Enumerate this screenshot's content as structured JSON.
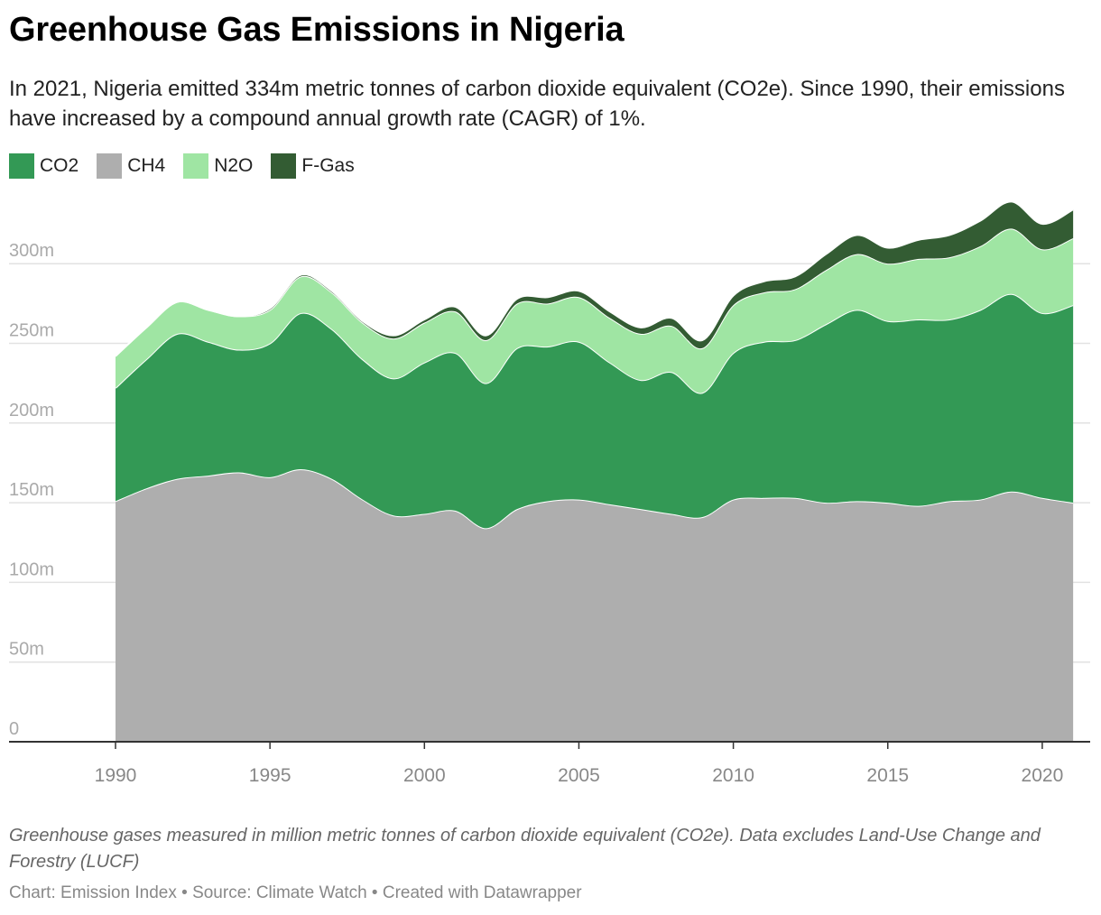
{
  "title": "Greenhouse Gas Emissions in Nigeria",
  "subtitle": "In 2021, Nigeria emitted 334m metric tonnes of carbon dioxide equivalent (CO2e). Since 1990, their emissions have increased by a compound annual growth rate (CAGR) of 1%.",
  "notes": "Greenhouse gases measured in million metric tonnes of carbon dioxide equivalent (CO2e). Data excludes Land-Use Change and Forestry (LUCF)",
  "source": "Chart: Emission Index • Source: Climate Watch • Created with Datawrapper",
  "legend": [
    {
      "label": "CO2",
      "color": "#339955"
    },
    {
      "label": "CH4",
      "color": "#aeaeae"
    },
    {
      "label": "N2O",
      "color": "#9fe5a3"
    },
    {
      "label": "F-Gas",
      "color": "#335c33"
    }
  ],
  "chart_data": {
    "type": "area",
    "stacked": true,
    "x": [
      1990,
      1991,
      1992,
      1993,
      1994,
      1995,
      1996,
      1997,
      1998,
      1999,
      2000,
      2001,
      2002,
      2003,
      2004,
      2005,
      2006,
      2007,
      2008,
      2009,
      2010,
      2011,
      2012,
      2013,
      2014,
      2015,
      2016,
      2017,
      2018,
      2019,
      2020,
      2021
    ],
    "series": [
      {
        "name": "CH4",
        "color": "#aeaeae",
        "values": [
          151,
          159,
          165,
          167,
          169,
          166,
          171,
          165,
          152,
          142,
          143,
          145,
          134,
          146,
          151,
          152,
          149,
          146,
          143,
          141,
          152,
          153,
          153,
          150,
          151,
          150,
          148,
          151,
          152,
          157,
          153,
          150
        ]
      },
      {
        "name": "CO2",
        "color": "#339955",
        "values": [
          71,
          81,
          91,
          84,
          77,
          84,
          98,
          94,
          88,
          86,
          95,
          99,
          91,
          101,
          97,
          99,
          89,
          81,
          89,
          78,
          92,
          98,
          99,
          112,
          120,
          114,
          117,
          114,
          119,
          124,
          116,
          124
        ]
      },
      {
        "name": "N2O",
        "color": "#9fe5a3",
        "values": [
          20,
          20,
          20,
          20,
          21,
          21,
          23,
          23,
          23,
          25,
          25,
          26,
          27,
          28,
          27,
          28,
          28,
          29,
          29,
          28,
          30,
          31,
          32,
          34,
          35,
          36,
          38,
          39,
          40,
          41,
          40,
          42
        ]
      },
      {
        "name": "F-Gas",
        "color": "#335c33",
        "values": [
          0,
          0,
          0,
          0,
          0,
          1,
          1,
          1,
          1,
          2,
          2,
          3,
          3,
          3,
          4,
          4,
          4,
          4,
          5,
          5,
          6,
          7,
          8,
          10,
          12,
          10,
          12,
          14,
          16,
          17,
          16,
          18
        ]
      }
    ],
    "y_ticks": [
      "0",
      "50m",
      "100m",
      "150m",
      "200m",
      "250m",
      "300m"
    ],
    "y_tick_values": [
      0,
      50,
      100,
      150,
      200,
      250,
      300
    ],
    "x_ticks": [
      1990,
      1995,
      2000,
      2005,
      2010,
      2015,
      2020
    ],
    "ylim": [
      0,
      350
    ],
    "xlim": [
      1986.6,
      2021
    ],
    "grid": "horizontal",
    "legend_position": "top-left"
  }
}
